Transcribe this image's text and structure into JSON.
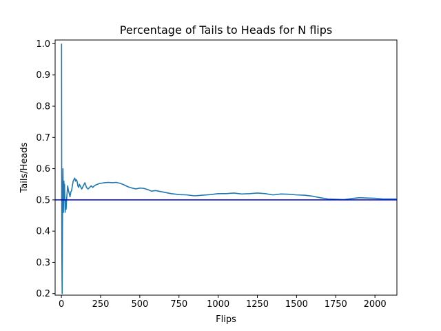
{
  "chart_data": {
    "type": "line",
    "title": "Percentage of Tails to Heads for N flips",
    "xlabel": "Flips",
    "ylabel": "Tails/Heads",
    "xlim": [
      -40,
      2140
    ],
    "ylim": [
      0.195,
      1.012
    ],
    "xticks": [
      0,
      250,
      500,
      750,
      1000,
      1250,
      1500,
      1750,
      2000
    ],
    "yticks": [
      0.2,
      0.3,
      0.4,
      0.5,
      0.6,
      0.7,
      0.8,
      0.9,
      1.0
    ],
    "ytick_labels": [
      "0.2",
      "0.3",
      "0.4",
      "0.5",
      "0.6",
      "0.7",
      "0.8",
      "0.9",
      "1.0"
    ],
    "grid": false,
    "series": [
      {
        "color": "#1f77b4",
        "x": [
          1,
          2,
          3,
          4,
          5,
          6,
          7,
          8,
          9,
          10,
          11,
          12,
          13,
          14,
          15,
          16,
          18,
          20,
          22,
          24,
          26,
          28,
          30,
          33,
          36,
          40,
          45,
          50,
          55,
          60,
          65,
          70,
          75,
          80,
          85,
          90,
          95,
          100,
          105,
          110,
          115,
          120,
          125,
          130,
          140,
          150,
          160,
          170,
          180,
          190,
          200,
          210,
          220,
          230,
          240,
          250,
          275,
          300,
          325,
          350,
          375,
          400,
          425,
          450,
          475,
          500,
          525,
          550,
          575,
          600,
          650,
          700,
          750,
          800,
          850,
          900,
          950,
          1000,
          1050,
          1100,
          1150,
          1200,
          1250,
          1300,
          1350,
          1400,
          1450,
          1500,
          1550,
          1600,
          1650,
          1700,
          1750,
          1800,
          1850,
          1900,
          1950,
          2000,
          2050,
          2100,
          2140
        ],
        "y": [
          1.0,
          0.5,
          0.33,
          0.25,
          0.2,
          0.33,
          0.43,
          0.5,
          0.56,
          0.6,
          0.55,
          0.5,
          0.46,
          0.5,
          0.53,
          0.56,
          0.5,
          0.55,
          0.5,
          0.46,
          0.48,
          0.5,
          0.47,
          0.5,
          0.52,
          0.545,
          0.53,
          0.52,
          0.51,
          0.525,
          0.53,
          0.545,
          0.56,
          0.565,
          0.57,
          0.56,
          0.565,
          0.56,
          0.545,
          0.54,
          0.55,
          0.545,
          0.54,
          0.535,
          0.545,
          0.555,
          0.54,
          0.535,
          0.54,
          0.545,
          0.54,
          0.545,
          0.548,
          0.55,
          0.552,
          0.553,
          0.555,
          0.556,
          0.555,
          0.556,
          0.553,
          0.548,
          0.542,
          0.538,
          0.535,
          0.538,
          0.537,
          0.533,
          0.528,
          0.53,
          0.525,
          0.52,
          0.517,
          0.516,
          0.513,
          0.515,
          0.517,
          0.52,
          0.52,
          0.522,
          0.519,
          0.52,
          0.522,
          0.52,
          0.516,
          0.519,
          0.518,
          0.516,
          0.515,
          0.512,
          0.507,
          0.503,
          0.502,
          0.501,
          0.504,
          0.507,
          0.506,
          0.505,
          0.503,
          0.503,
          0.503
        ]
      },
      {
        "color": "#0000cc",
        "y_const": 0.5
      }
    ]
  }
}
